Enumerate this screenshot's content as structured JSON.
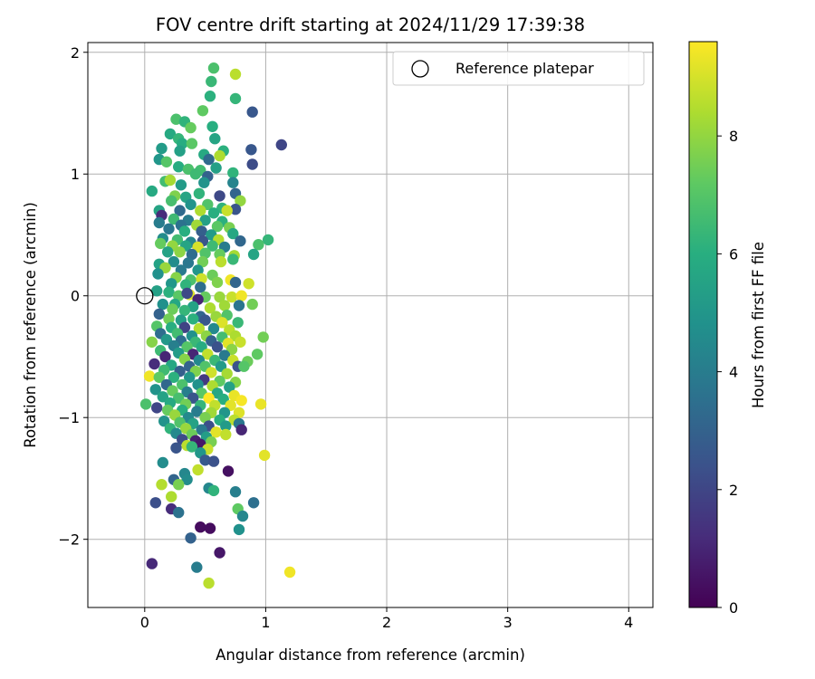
{
  "chart_data": {
    "type": "scatter",
    "title": "FOV centre drift starting at 2024/11/29 17:39:38",
    "xlabel": "Angular distance from reference (arcmin)",
    "ylabel": "Rotation from reference (arcmin)",
    "xlim": [
      -0.47,
      4.2
    ],
    "ylim": [
      -2.56,
      2.08
    ],
    "xticks": [
      "0",
      "1",
      "2",
      "3",
      "4"
    ],
    "yticks": [
      "−2",
      "−1",
      "0",
      "1",
      "2"
    ],
    "grid": true,
    "legend": {
      "placement": "top-right",
      "entries": [
        "Reference platepar"
      ]
    },
    "reference_point": {
      "x": 0,
      "y": 0
    },
    "colorbar": {
      "label": "Hours from first FF file",
      "colormap": "viridis",
      "range": [
        0,
        9.6
      ],
      "ticks": [
        "0",
        "2",
        "4",
        "6",
        "8"
      ]
    },
    "points": [
      [
        0.57,
        1.87,
        6.8
      ],
      [
        0.75,
        1.82,
        8.6
      ],
      [
        0.55,
        1.76,
        6.4
      ],
      [
        0.54,
        1.64,
        6.1
      ],
      [
        0.75,
        1.62,
        6.3
      ],
      [
        0.48,
        1.52,
        7.2
      ],
      [
        0.89,
        1.51,
        2.6
      ],
      [
        0.26,
        1.45,
        6.8
      ],
      [
        0.33,
        1.43,
        6.2
      ],
      [
        0.56,
        1.39,
        6.0
      ],
      [
        0.38,
        1.38,
        7.3
      ],
      [
        0.21,
        1.33,
        5.8
      ],
      [
        0.28,
        1.29,
        6.3
      ],
      [
        0.58,
        1.29,
        5.6
      ],
      [
        0.31,
        1.25,
        5.9
      ],
      [
        0.39,
        1.25,
        7.1
      ],
      [
        0.14,
        1.21,
        5.2
      ],
      [
        0.88,
        1.2,
        2.6
      ],
      [
        1.13,
        1.24,
        2.0
      ],
      [
        0.29,
        1.19,
        5.4
      ],
      [
        0.65,
        1.19,
        6.1
      ],
      [
        0.49,
        1.16,
        5.8
      ],
      [
        0.12,
        1.12,
        5.0
      ],
      [
        0.62,
        1.15,
        8.4
      ],
      [
        0.18,
        1.1,
        7.0
      ],
      [
        0.53,
        1.12,
        3.3
      ],
      [
        0.89,
        1.08,
        2.2
      ],
      [
        0.28,
        1.06,
        5.9
      ],
      [
        0.36,
        1.04,
        6.8
      ],
      [
        0.46,
        1.03,
        6.6
      ],
      [
        0.59,
        1.05,
        5.4
      ],
      [
        0.73,
        1.01,
        6.2
      ],
      [
        0.42,
        1.0,
        6.5
      ],
      [
        0.52,
        0.98,
        3.0
      ],
      [
        0.17,
        0.94,
        6.6
      ],
      [
        0.21,
        0.95,
        8.3
      ],
      [
        0.3,
        0.91,
        5.2
      ],
      [
        0.49,
        0.93,
        4.9
      ],
      [
        0.73,
        0.93,
        4.3
      ],
      [
        0.06,
        0.86,
        5.8
      ],
      [
        0.25,
        0.82,
        7.7
      ],
      [
        0.34,
        0.81,
        5.6
      ],
      [
        0.45,
        0.84,
        6.2
      ],
      [
        0.62,
        0.82,
        2.1
      ],
      [
        0.75,
        0.84,
        3.1
      ],
      [
        0.79,
        0.78,
        8.0
      ],
      [
        0.22,
        0.78,
        6.7
      ],
      [
        0.38,
        0.75,
        4.9
      ],
      [
        0.52,
        0.75,
        6.9
      ],
      [
        0.64,
        0.72,
        6.2
      ],
      [
        0.75,
        0.71,
        2.5
      ],
      [
        0.12,
        0.7,
        5.6
      ],
      [
        0.29,
        0.7,
        3.3
      ],
      [
        0.46,
        0.7,
        8.4
      ],
      [
        0.57,
        0.68,
        6.0
      ],
      [
        0.68,
        0.7,
        8.8
      ],
      [
        0.14,
        0.66,
        1.2
      ],
      [
        0.24,
        0.63,
        6.5
      ],
      [
        0.36,
        0.62,
        4.0
      ],
      [
        0.5,
        0.62,
        5.4
      ],
      [
        0.64,
        0.61,
        6.1
      ],
      [
        0.12,
        0.6,
        4.0
      ],
      [
        0.3,
        0.58,
        3.6
      ],
      [
        0.43,
        0.58,
        8.2
      ],
      [
        0.6,
        0.57,
        7.1
      ],
      [
        0.7,
        0.56,
        7.6
      ],
      [
        0.2,
        0.55,
        3.8
      ],
      [
        0.33,
        0.53,
        6.0
      ],
      [
        0.47,
        0.53,
        2.9
      ],
      [
        0.55,
        0.5,
        5.2
      ],
      [
        0.73,
        0.51,
        5.7
      ],
      [
        0.15,
        0.47,
        4.6
      ],
      [
        0.27,
        0.46,
        6.6
      ],
      [
        0.38,
        0.44,
        4.4
      ],
      [
        0.48,
        0.45,
        2.5
      ],
      [
        0.61,
        0.46,
        8.5
      ],
      [
        0.79,
        0.45,
        3.2
      ],
      [
        1.02,
        0.46,
        6.3
      ],
      [
        0.13,
        0.43,
        7.3
      ],
      [
        0.23,
        0.41,
        8.0
      ],
      [
        0.34,
        0.41,
        5.6
      ],
      [
        0.44,
        0.4,
        9.0
      ],
      [
        0.56,
        0.41,
        6.5
      ],
      [
        0.66,
        0.4,
        4.0
      ],
      [
        0.94,
        0.42,
        6.8
      ],
      [
        0.19,
        0.36,
        5.5
      ],
      [
        0.29,
        0.36,
        7.9
      ],
      [
        0.39,
        0.34,
        3.4
      ],
      [
        0.5,
        0.35,
        6.9
      ],
      [
        0.62,
        0.34,
        7.3
      ],
      [
        0.74,
        0.33,
        8.3
      ],
      [
        0.9,
        0.34,
        5.6
      ],
      [
        0.12,
        0.26,
        5.5
      ],
      [
        0.24,
        0.28,
        4.6
      ],
      [
        0.36,
        0.27,
        3.8
      ],
      [
        0.48,
        0.28,
        7.5
      ],
      [
        0.63,
        0.28,
        8.6
      ],
      [
        0.73,
        0.3,
        6.4
      ],
      [
        0.17,
        0.23,
        8.1
      ],
      [
        0.3,
        0.21,
        3.9
      ],
      [
        0.44,
        0.21,
        5.0
      ],
      [
        0.56,
        0.17,
        7.4
      ],
      [
        0.71,
        0.13,
        9.4
      ],
      [
        0.11,
        0.18,
        4.8
      ],
      [
        0.26,
        0.15,
        7.8
      ],
      [
        0.38,
        0.13,
        6.8
      ],
      [
        0.47,
        0.14,
        8.9
      ],
      [
        0.6,
        0.11,
        7.7
      ],
      [
        0.75,
        0.11,
        3.1
      ],
      [
        0.86,
        0.1,
        8.9
      ],
      [
        0.22,
        0.1,
        5.0
      ],
      [
        0.34,
        0.09,
        6.2
      ],
      [
        0.46,
        0.07,
        3.4
      ],
      [
        0.1,
        0.04,
        5.4
      ],
      [
        0.2,
        0.03,
        6.1
      ],
      [
        0.28,
        0.0,
        7.1
      ],
      [
        0.37,
        0.01,
        9.1
      ],
      [
        0.5,
        -0.01,
        7.3
      ],
      [
        0.62,
        -0.01,
        8.1
      ],
      [
        0.72,
        -0.01,
        8.8
      ],
      [
        0.8,
        0.0,
        9.4
      ],
      [
        0.89,
        -0.07,
        7.5
      ],
      [
        0.35,
        0.02,
        2.1
      ],
      [
        0.44,
        -0.03,
        1.0
      ],
      [
        0.15,
        -0.07,
        4.8
      ],
      [
        0.25,
        -0.07,
        5.7
      ],
      [
        0.4,
        -0.09,
        5.5
      ],
      [
        0.54,
        -0.1,
        8.4
      ],
      [
        0.66,
        -0.08,
        8.2
      ],
      [
        0.78,
        -0.08,
        3.7
      ],
      [
        0.23,
        -0.11,
        7.4
      ],
      [
        0.33,
        -0.12,
        6.3
      ],
      [
        0.46,
        -0.17,
        3.2
      ],
      [
        0.59,
        -0.17,
        8.1
      ],
      [
        0.68,
        -0.16,
        6.9
      ],
      [
        0.12,
        -0.15,
        3.0
      ],
      [
        0.2,
        -0.19,
        7.5
      ],
      [
        0.3,
        -0.2,
        5.3
      ],
      [
        0.4,
        -0.19,
        6.1
      ],
      [
        0.5,
        -0.2,
        2.6
      ],
      [
        0.64,
        -0.22,
        9.1
      ],
      [
        0.77,
        -0.22,
        6.4
      ],
      [
        0.1,
        -0.25,
        7.0
      ],
      [
        0.22,
        -0.26,
        6.0
      ],
      [
        0.33,
        -0.26,
        1.9
      ],
      [
        0.45,
        -0.27,
        8.5
      ],
      [
        0.57,
        -0.27,
        4.5
      ],
      [
        0.7,
        -0.28,
        8.6
      ],
      [
        0.13,
        -0.31,
        3.4
      ],
      [
        0.27,
        -0.31,
        6.6
      ],
      [
        0.39,
        -0.33,
        4.8
      ],
      [
        0.51,
        -0.33,
        7.9
      ],
      [
        0.64,
        -0.34,
        6.6
      ],
      [
        0.75,
        -0.33,
        8.4
      ],
      [
        0.98,
        -0.34,
        7.5
      ],
      [
        0.18,
        -0.36,
        5.1
      ],
      [
        0.3,
        -0.37,
        3.5
      ],
      [
        0.42,
        -0.38,
        6.4
      ],
      [
        0.55,
        -0.37,
        3.0
      ],
      [
        0.69,
        -0.39,
        9.2
      ],
      [
        0.79,
        -0.38,
        8.8
      ],
      [
        0.06,
        -0.38,
        7.8
      ],
      [
        0.24,
        -0.41,
        4.1
      ],
      [
        0.35,
        -0.42,
        7.0
      ],
      [
        0.47,
        -0.42,
        5.9
      ],
      [
        0.6,
        -0.42,
        2.4
      ],
      [
        0.72,
        -0.44,
        7.9
      ],
      [
        0.13,
        -0.45,
        6.5
      ],
      [
        0.28,
        -0.47,
        5.2
      ],
      [
        0.4,
        -0.48,
        1.0
      ],
      [
        0.52,
        -0.48,
        8.7
      ],
      [
        0.66,
        -0.49,
        3.9
      ],
      [
        0.93,
        -0.48,
        7.2
      ],
      [
        0.17,
        -0.5,
        1.0
      ],
      [
        0.33,
        -0.52,
        7.8
      ],
      [
        0.45,
        -0.53,
        4.5
      ],
      [
        0.58,
        -0.53,
        6.4
      ],
      [
        0.73,
        -0.53,
        8.8
      ],
      [
        0.85,
        -0.54,
        7.4
      ],
      [
        0.08,
        -0.56,
        1.2
      ],
      [
        0.22,
        -0.57,
        5.7
      ],
      [
        0.37,
        -0.58,
        3.0
      ],
      [
        0.5,
        -0.58,
        6.9
      ],
      [
        0.63,
        -0.58,
        5.2
      ],
      [
        0.77,
        -0.58,
        2.4
      ],
      [
        0.82,
        -0.58,
        7.0
      ],
      [
        0.16,
        -0.61,
        6.5
      ],
      [
        0.29,
        -0.62,
        2.9
      ],
      [
        0.42,
        -0.62,
        7.7
      ],
      [
        0.55,
        -0.63,
        8.9
      ],
      [
        0.68,
        -0.64,
        8.3
      ],
      [
        0.04,
        -0.66,
        9.4
      ],
      [
        0.12,
        -0.67,
        7.2
      ],
      [
        0.24,
        -0.67,
        6.1
      ],
      [
        0.37,
        -0.67,
        5.0
      ],
      [
        0.49,
        -0.69,
        1.6
      ],
      [
        0.62,
        -0.7,
        7.2
      ],
      [
        0.75,
        -0.71,
        7.8
      ],
      [
        0.18,
        -0.73,
        3.2
      ],
      [
        0.31,
        -0.73,
        6.8
      ],
      [
        0.44,
        -0.73,
        4.8
      ],
      [
        0.56,
        -0.74,
        8.4
      ],
      [
        0.7,
        -0.75,
        5.4
      ],
      [
        0.09,
        -0.77,
        4.9
      ],
      [
        0.23,
        -0.78,
        7.3
      ],
      [
        0.35,
        -0.79,
        4.1
      ],
      [
        0.47,
        -0.8,
        7.1
      ],
      [
        0.6,
        -0.8,
        5.7
      ],
      [
        0.74,
        -0.82,
        9.3
      ],
      [
        0.15,
        -0.83,
        5.5
      ],
      [
        0.28,
        -0.84,
        6.7
      ],
      [
        0.4,
        -0.84,
        2.5
      ],
      [
        0.53,
        -0.84,
        9.6
      ],
      [
        0.65,
        -0.85,
        6.0
      ],
      [
        0.8,
        -0.86,
        9.5
      ],
      [
        0.01,
        -0.89,
        6.8
      ],
      [
        0.21,
        -0.88,
        5.8
      ],
      [
        0.34,
        -0.89,
        7.5
      ],
      [
        0.46,
        -0.9,
        6.3
      ],
      [
        0.58,
        -0.9,
        8.7
      ],
      [
        0.71,
        -0.9,
        9.2
      ],
      [
        0.96,
        -0.89,
        9.3
      ],
      [
        0.1,
        -0.92,
        2.0
      ],
      [
        0.19,
        -0.94,
        7.3
      ],
      [
        0.31,
        -0.94,
        6.0
      ],
      [
        0.43,
        -0.95,
        4.0
      ],
      [
        0.55,
        -0.96,
        8.2
      ],
      [
        0.66,
        -0.96,
        5.0
      ],
      [
        0.78,
        -0.96,
        9.1
      ],
      [
        0.25,
        -0.98,
        8.1
      ],
      [
        0.36,
        -1.0,
        4.5
      ],
      [
        0.5,
        -1.0,
        7.6
      ],
      [
        0.62,
        -1.02,
        6.0
      ],
      [
        0.74,
        -1.02,
        8.6
      ],
      [
        0.16,
        -1.03,
        4.9
      ],
      [
        0.29,
        -1.04,
        6.9
      ],
      [
        0.4,
        -1.05,
        5.5
      ],
      [
        0.53,
        -1.07,
        2.3
      ],
      [
        0.67,
        -1.07,
        5.2
      ],
      [
        0.78,
        -1.05,
        3.8
      ],
      [
        0.21,
        -1.09,
        6.2
      ],
      [
        0.34,
        -1.09,
        8.1
      ],
      [
        0.47,
        -1.1,
        3.9
      ],
      [
        0.59,
        -1.12,
        9.2
      ],
      [
        0.8,
        -1.1,
        1.0
      ],
      [
        0.26,
        -1.13,
        4.5
      ],
      [
        0.39,
        -1.14,
        7.4
      ],
      [
        0.51,
        -1.16,
        5.3
      ],
      [
        0.67,
        -1.14,
        8.7
      ],
      [
        0.31,
        -1.18,
        2.2
      ],
      [
        0.42,
        -1.19,
        0.9
      ],
      [
        0.55,
        -1.2,
        7.6
      ],
      [
        0.46,
        -1.22,
        0.6
      ],
      [
        0.35,
        -1.23,
        8.6
      ],
      [
        0.26,
        -1.25,
        2.5
      ],
      [
        0.39,
        -1.24,
        6.3
      ],
      [
        0.52,
        -1.26,
        8.8
      ],
      [
        0.46,
        -1.29,
        5.0
      ],
      [
        0.99,
        -1.31,
        9.2
      ],
      [
        0.15,
        -1.37,
        4.6
      ],
      [
        0.5,
        -1.35,
        2.7
      ],
      [
        0.57,
        -1.36,
        2.4
      ],
      [
        0.33,
        -1.46,
        4.4
      ],
      [
        0.44,
        -1.43,
        8.7
      ],
      [
        0.69,
        -1.44,
        0.4
      ],
      [
        0.24,
        -1.51,
        3.1
      ],
      [
        0.35,
        -1.51,
        4.6
      ],
      [
        0.14,
        -1.55,
        8.5
      ],
      [
        0.28,
        -1.55,
        7.6
      ],
      [
        0.53,
        -1.58,
        4.4
      ],
      [
        0.57,
        -1.6,
        6.2
      ],
      [
        0.75,
        -1.61,
        4.1
      ],
      [
        0.22,
        -1.65,
        8.4
      ],
      [
        0.09,
        -1.7,
        2.3
      ],
      [
        0.9,
        -1.7,
        3.5
      ],
      [
        0.22,
        -1.75,
        1.2
      ],
      [
        0.28,
        -1.78,
        3.6
      ],
      [
        0.77,
        -1.75,
        7.2
      ],
      [
        0.81,
        -1.81,
        4.4
      ],
      [
        0.46,
        -1.9,
        0.3
      ],
      [
        0.54,
        -1.91,
        0.3
      ],
      [
        0.78,
        -1.92,
        4.8
      ],
      [
        0.38,
        -1.99,
        3.0
      ],
      [
        0.62,
        -2.11,
        0.6
      ],
      [
        0.06,
        -2.2,
        1.1
      ],
      [
        0.43,
        -2.23,
        4.0
      ],
      [
        1.2,
        -2.27,
        9.4
      ],
      [
        0.53,
        -2.36,
        8.6
      ]
    ]
  }
}
